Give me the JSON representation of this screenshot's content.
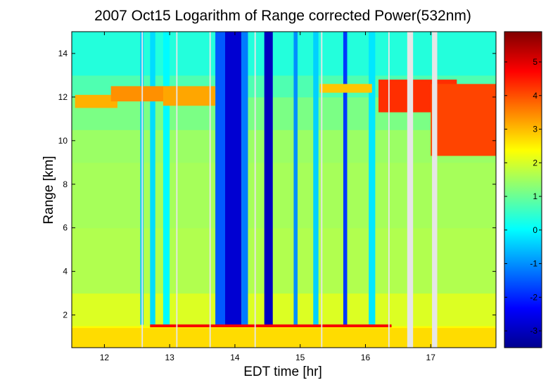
{
  "chart_data": {
    "type": "heatmap",
    "title": "2007 Oct15  Logarithm of Range corrected Power(532nm)",
    "xlabel": "EDT time [hr]",
    "ylabel": "Range [km]",
    "xlim": [
      11.5,
      18.0
    ],
    "ylim": [
      0.5,
      15.0
    ],
    "xticks": [
      "12",
      "13",
      "14",
      "15",
      "16",
      "17"
    ],
    "yticks": [
      "2",
      "4",
      "6",
      "8",
      "10",
      "12",
      "14"
    ],
    "colorbar": {
      "range": [
        -3.5,
        5.9
      ],
      "ticks": [
        "-3",
        "-2",
        "-1",
        "0",
        "1",
        "2",
        "3",
        "4",
        "5"
      ],
      "colormap": "jet"
    },
    "colormap_colors": [
      "#00008f",
      "#0000ff",
      "#0080ff",
      "#00ffff",
      "#80ff80",
      "#ffff00",
      "#ff8000",
      "#ff0000",
      "#800000"
    ],
    "background_profile": [
      {
        "range_km": 0.5,
        "value": 2.5
      },
      {
        "range_km": 1.4,
        "value": 2.5
      },
      {
        "range_km": 1.5,
        "value": 2.3
      },
      {
        "range_km": 3.0,
        "value": 1.8
      },
      {
        "range_km": 6.0,
        "value": 1.5
      },
      {
        "range_km": 9.0,
        "value": 1.6
      },
      {
        "range_km": 10.5,
        "value": 1.3
      },
      {
        "range_km": 12.0,
        "value": 1.0
      },
      {
        "range_km": 13.0,
        "value": 0.5
      },
      {
        "range_km": 15.0,
        "value": 0.2
      }
    ],
    "boundary_layer": {
      "top_km": 1.4,
      "value": 2.7
    },
    "aerosol_top": {
      "range_km": 1.5,
      "value": 4.8,
      "time_range": [
        12.7,
        16.4
      ]
    },
    "cirrus_layers": [
      {
        "time_start": 11.55,
        "time_end": 12.2,
        "bottom_km": 11.5,
        "top_km": 12.1,
        "value": 3.1
      },
      {
        "time_start": 12.1,
        "time_end": 13.1,
        "bottom_km": 11.8,
        "top_km": 12.5,
        "value": 3.4
      },
      {
        "time_start": 12.9,
        "time_end": 13.7,
        "bottom_km": 11.6,
        "top_km": 12.5,
        "value": 3.2
      },
      {
        "time_start": 15.3,
        "time_end": 16.1,
        "bottom_km": 12.2,
        "top_km": 12.6,
        "value": 2.9
      },
      {
        "time_start": 16.2,
        "time_end": 17.4,
        "bottom_km": 11.3,
        "top_km": 12.8,
        "value": 4.3
      },
      {
        "time_start": 17.0,
        "time_end": 18.0,
        "bottom_km": 9.3,
        "top_km": 12.6,
        "value": 4.1
      }
    ],
    "low_signal_streaks": [
      {
        "time_start": 12.55,
        "time_end": 12.6,
        "value": -0.5
      },
      {
        "time_start": 12.7,
        "time_end": 12.78,
        "value": -0.3
      },
      {
        "time_start": 12.9,
        "time_end": 13.0,
        "value": 0.0
      },
      {
        "time_start": 13.7,
        "time_end": 13.85,
        "value": -1.5
      },
      {
        "time_start": 13.85,
        "time_end": 14.1,
        "value": -2.8
      },
      {
        "time_start": 14.1,
        "time_end": 14.2,
        "value": -1.2
      },
      {
        "time_start": 14.45,
        "time_end": 14.58,
        "value": -3.0
      },
      {
        "time_start": 14.9,
        "time_end": 14.96,
        "value": -1.0
      },
      {
        "time_start": 15.2,
        "time_end": 15.28,
        "value": -0.4
      },
      {
        "time_start": 15.66,
        "time_end": 15.72,
        "value": -1.8
      },
      {
        "time_start": 16.05,
        "time_end": 16.15,
        "value": -0.2
      }
    ],
    "data_gaps": [
      {
        "time_start": 12.57,
        "time_end": 12.59
      },
      {
        "time_start": 13.1,
        "time_end": 13.12
      },
      {
        "time_start": 13.61,
        "time_end": 13.63
      },
      {
        "time_start": 14.3,
        "time_end": 14.32
      },
      {
        "time_start": 15.32,
        "time_end": 15.34
      },
      {
        "time_start": 16.35,
        "time_end": 16.37
      },
      {
        "time_start": 16.64,
        "time_end": 16.73
      },
      {
        "time_start": 17.02,
        "time_end": 17.1
      }
    ]
  }
}
